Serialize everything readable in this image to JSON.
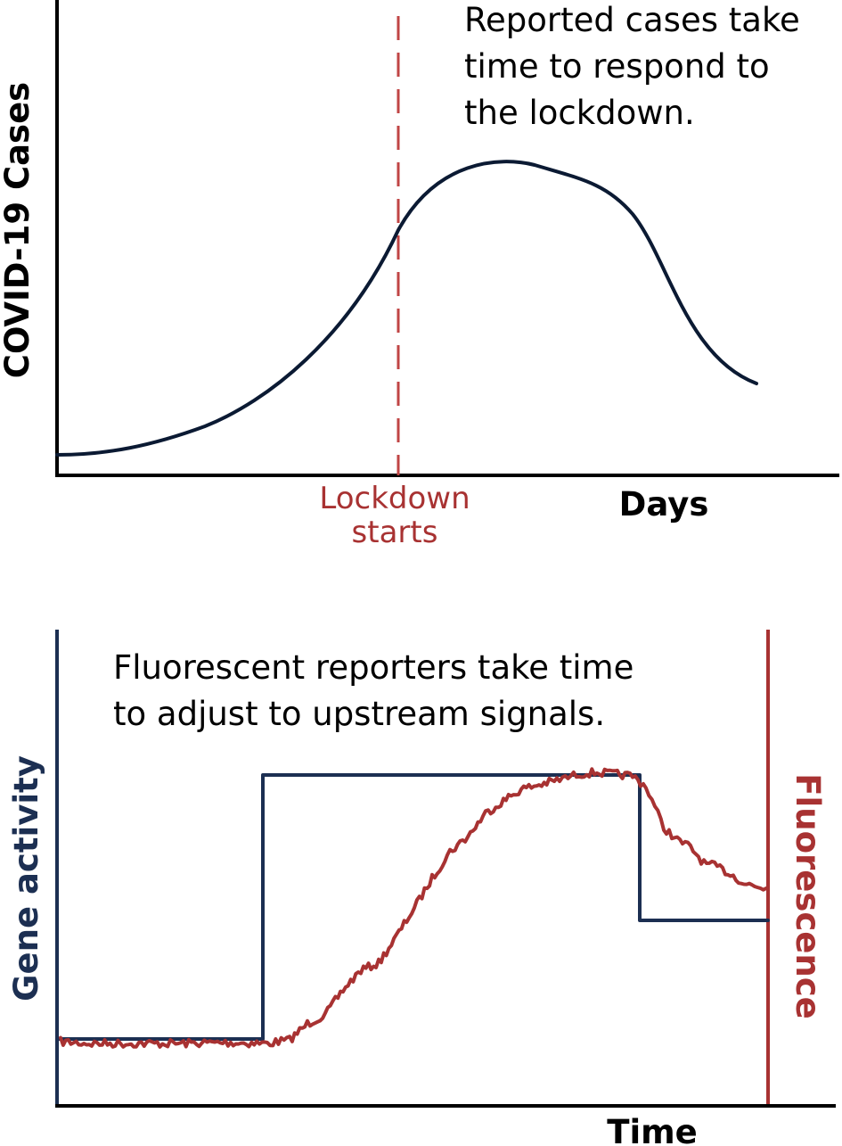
{
  "colors": {
    "cases_curve": "#0b1a33",
    "lockdown": "#a83232",
    "gene_activity": "#1c2f52",
    "fluorescence": "#a83232",
    "axis": "#000000"
  },
  "top_panel": {
    "ylabel": "COVID-19 Cases",
    "xlabel": "Days",
    "annotation_lines": [
      "Reported cases take",
      "time to respond to",
      "the lockdown."
    ],
    "lockdown_label_lines": [
      "Lockdown",
      "starts"
    ]
  },
  "bottom_panel": {
    "left_ylabel": "Gene activity",
    "right_ylabel": "Fluorescence",
    "xlabel": "Time",
    "annotation_lines": [
      "Fluorescent reporters take time",
      "to adjust to upstream signals."
    ]
  }
}
